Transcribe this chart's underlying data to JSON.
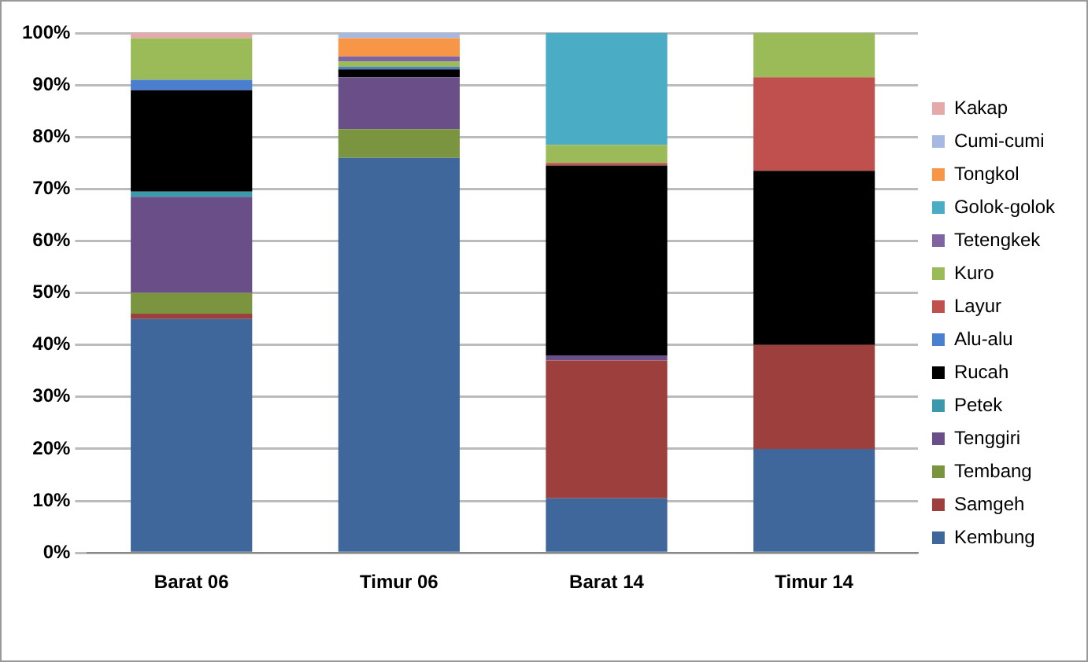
{
  "chart_data": {
    "type": "bar",
    "stacked": true,
    "categories": [
      "Barat 06",
      "Timur 06",
      "Barat 14",
      "Timur 14"
    ],
    "series": [
      {
        "name": "Kembung",
        "color": "#3f679c",
        "values": [
          45,
          76,
          10.5,
          20
        ]
      },
      {
        "name": "Samgeh",
        "color": "#9c3f3d",
        "values": [
          1,
          0,
          26.5,
          20
        ]
      },
      {
        "name": "Tembang",
        "color": "#7a9440",
        "values": [
          4,
          5.5,
          0,
          0
        ]
      },
      {
        "name": "Tenggiri",
        "color": "#6a4e87",
        "values": [
          18.5,
          10,
          1,
          0
        ]
      },
      {
        "name": "Petek",
        "color": "#3a9aab",
        "values": [
          1,
          0,
          0,
          0
        ]
      },
      {
        "name": "Rucah",
        "color": "#000000",
        "values": [
          19.5,
          1.5,
          36.5,
          33.5
        ]
      },
      {
        "name": "Alu-alu",
        "color": "#4a7fcf",
        "values": [
          2,
          0.5,
          0,
          0
        ]
      },
      {
        "name": "Layur",
        "color": "#c0504d",
        "values": [
          0,
          0,
          0.5,
          18
        ]
      },
      {
        "name": "Kuro",
        "color": "#9bbb59",
        "values": [
          8,
          1,
          3.5,
          8.5
        ]
      },
      {
        "name": "Tetengkek",
        "color": "#8064a2",
        "values": [
          0,
          1,
          0,
          0
        ]
      },
      {
        "name": "Golok-golok",
        "color": "#4bacc6",
        "values": [
          0,
          0,
          21.5,
          0
        ]
      },
      {
        "name": "Tongkol",
        "color": "#f79646",
        "values": [
          0,
          3.5,
          0,
          0
        ]
      },
      {
        "name": "Cumi-cumi",
        "color": "#a7b9e0",
        "values": [
          0,
          1,
          0,
          0
        ]
      },
      {
        "name": "Kakap",
        "color": "#e6a9a9",
        "values": [
          1,
          0,
          0,
          0
        ]
      }
    ],
    "ylim": [
      0,
      100
    ],
    "yticks": [
      {
        "value": 0,
        "label": "0%"
      },
      {
        "value": 10,
        "label": "10%"
      },
      {
        "value": 20,
        "label": "20%"
      },
      {
        "value": 30,
        "label": "30%"
      },
      {
        "value": 40,
        "label": "40%"
      },
      {
        "value": 50,
        "label": "50%"
      },
      {
        "value": 60,
        "label": "60%"
      },
      {
        "value": 70,
        "label": "70%"
      },
      {
        "value": 80,
        "label": "80%"
      },
      {
        "value": 90,
        "label": "90%"
      },
      {
        "value": 100,
        "label": "100%"
      }
    ],
    "grid": "y",
    "legend": "right"
  }
}
